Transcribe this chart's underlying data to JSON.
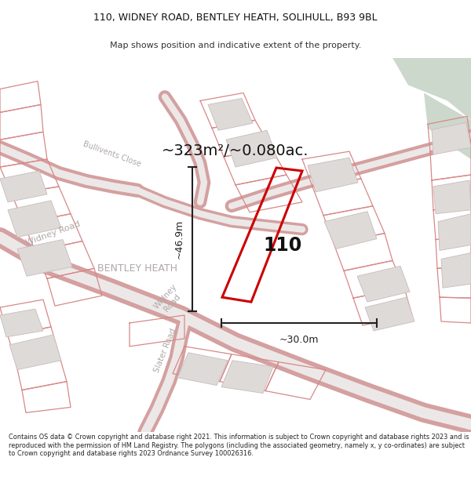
{
  "title_line1": "110, WIDNEY ROAD, BENTLEY HEATH, SOLIHULL, B93 9BL",
  "title_line2": "Map shows position and indicative extent of the property.",
  "area_text": "~323m²/~0.080ac.",
  "width_text": "~30.0m",
  "height_text": "~46.9m",
  "number_text": "110",
  "area_label": "BENTLEY HEATH",
  "footer_text": "Contains OS data © Crown copyright and database right 2021. This information is subject to Crown copyright and database rights 2023 and is reproduced with the permission of HM Land Registry. The polygons (including the associated geometry, namely x, y co-ordinates) are subject to Crown copyright and database rights 2023 Ordnance Survey 100026316.",
  "bg_color": "#f0eeee",
  "green_color": "#cdd8cd",
  "road_outer": "#d4a0a0",
  "road_inner": "#ede8e8",
  "plot_edge": "#cc0000",
  "bldg_face": "#dedad8",
  "bldg_edge": "#c8bcbc",
  "dim_color": "#222222",
  "road_label": "#b0a8a8",
  "text_color": "#111111"
}
